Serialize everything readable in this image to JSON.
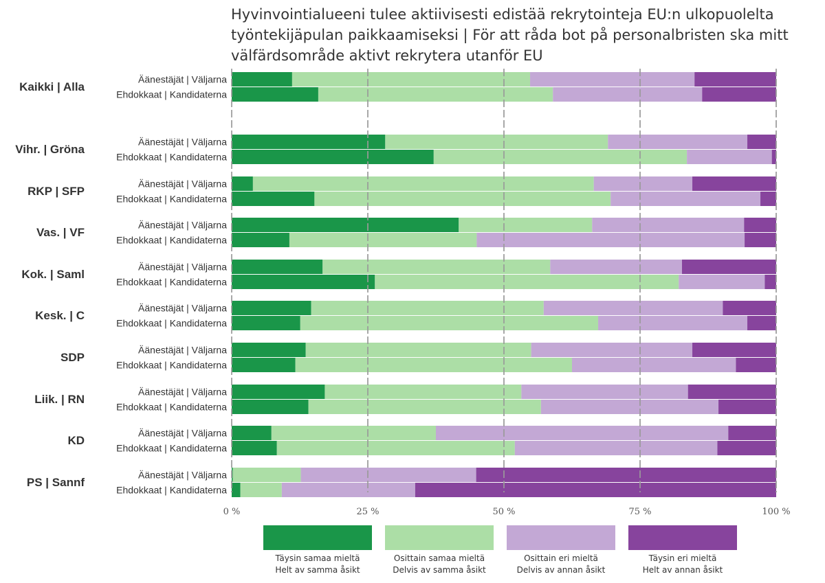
{
  "title": {
    "line1": "Hyvinvointialueeni tulee aktiivisesti edistää rekrytointeja EU:n ulkopuolelta",
    "line2": "työntekijäpulan paikkaamiseksi | För att råda bot på personalbristen ska mitt",
    "line3": "välfärdsområde aktivt rekrytera utanför EU"
  },
  "chart_data": {
    "type": "bar",
    "orientation": "horizontal",
    "stacked": true,
    "xlim": [
      0,
      100
    ],
    "ticks": [
      "0 %",
      "25 %",
      "50 %",
      "75 %",
      "100 %"
    ],
    "tick_values": [
      0,
      25,
      50,
      75,
      100
    ],
    "grid": true,
    "series": [
      {
        "name": "Täysin samaa mieltä | Helt av samma åsikt",
        "line1": "Täysin samaa mieltä",
        "line2": "Helt av samma åsikt",
        "color": "#1a9649"
      },
      {
        "name": "Osittain samaa mieltä | Delvis av samma åsikt",
        "line1": "Osittain samaa mieltä",
        "line2": "Delvis av samma åsikt",
        "color": "#acdea6"
      },
      {
        "name": "Osittain eri mieltä | Delvis av annan åsikt",
        "line1": "Osittain eri mieltä",
        "line2": "Delvis av annan åsikt",
        "color": "#c3a8d5"
      },
      {
        "name": "Täysin eri mieltä | Helt av annan åsikt",
        "line1": "Täysin eri mieltä",
        "line2": "Helt av annan åsikt",
        "color": "#87449d"
      }
    ],
    "groups": [
      {
        "label": "Kaikki | Alla",
        "rows": [
          {
            "label": "Äänestäjät | Väljarna",
            "values": [
              11.1,
              43.7,
              30.2,
              15.0
            ]
          },
          {
            "label": "Ehdokkaat | Kandidaterna",
            "values": [
              15.9,
              43.1,
              27.4,
              13.6
            ]
          }
        ]
      },
      {
        "label": "Vihr. | Gröna",
        "rows": [
          {
            "label": "Äänestäjät | Väljarna",
            "values": [
              28.2,
              40.9,
              25.6,
              5.3
            ]
          },
          {
            "label": "Ehdokkaat | Kandidaterna",
            "values": [
              37.1,
              46.5,
              15.6,
              0.8
            ]
          }
        ]
      },
      {
        "label": "RKP | SFP",
        "rows": [
          {
            "label": "Äänestäjät | Väljarna",
            "values": [
              3.9,
              62.6,
              18.1,
              15.4
            ]
          },
          {
            "label": "Ehdokkaat | Kandidaterna",
            "values": [
              15.2,
              54.4,
              27.5,
              2.9
            ]
          }
        ]
      },
      {
        "label": "Vas. | VF",
        "rows": [
          {
            "label": "Äänestäjät | Väljarna",
            "values": [
              41.7,
              24.5,
              27.9,
              5.9
            ]
          },
          {
            "label": "Ehdokkaat | Kandidaterna",
            "values": [
              10.6,
              34.4,
              49.2,
              5.8
            ]
          }
        ]
      },
      {
        "label": "Kok. | Saml",
        "rows": [
          {
            "label": "Äänestäjät | Väljarna",
            "values": [
              16.7,
              41.8,
              24.2,
              17.3
            ]
          },
          {
            "label": "Ehdokkaat | Kandidaterna",
            "values": [
              26.3,
              55.8,
              15.8,
              2.1
            ]
          }
        ]
      },
      {
        "label": "Kesk. | C",
        "rows": [
          {
            "label": "Äänestäjät | Väljarna",
            "values": [
              14.6,
              42.7,
              32.9,
              9.8
            ]
          },
          {
            "label": "Ehdokkaat | Kandidaterna",
            "values": [
              12.6,
              54.7,
              27.4,
              5.3
            ]
          }
        ]
      },
      {
        "label": "SDP",
        "rows": [
          {
            "label": "Äänestäjät | Väljarna",
            "values": [
              13.6,
              41.4,
              29.6,
              15.4
            ]
          },
          {
            "label": "Ehdokkaat | Kandidaterna",
            "values": [
              11.7,
              50.8,
              30.1,
              7.4
            ]
          }
        ]
      },
      {
        "label": "Liik. | RN",
        "rows": [
          {
            "label": "Äänestäjät | Väljarna",
            "values": [
              17.1,
              36.1,
              30.6,
              16.2
            ]
          },
          {
            "label": "Ehdokkaat | Kandidaterna",
            "values": [
              14.1,
              42.7,
              32.6,
              10.6
            ]
          }
        ]
      },
      {
        "label": "KD",
        "rows": [
          {
            "label": "Äänestäjät | Väljarna",
            "values": [
              7.3,
              30.2,
              53.7,
              8.8
            ]
          },
          {
            "label": "Ehdokkaat | Kandidaterna",
            "values": [
              8.3,
              43.7,
              37.2,
              10.8
            ]
          }
        ]
      },
      {
        "label": "PS | Sannf",
        "rows": [
          {
            "label": "Äänestäjät | Väljarna",
            "values": [
              0.2,
              12.5,
              32.2,
              55.1
            ]
          },
          {
            "label": "Ehdokkaat | Kandidaterna",
            "values": [
              1.6,
              7.6,
              24.5,
              66.3
            ]
          }
        ]
      }
    ]
  }
}
